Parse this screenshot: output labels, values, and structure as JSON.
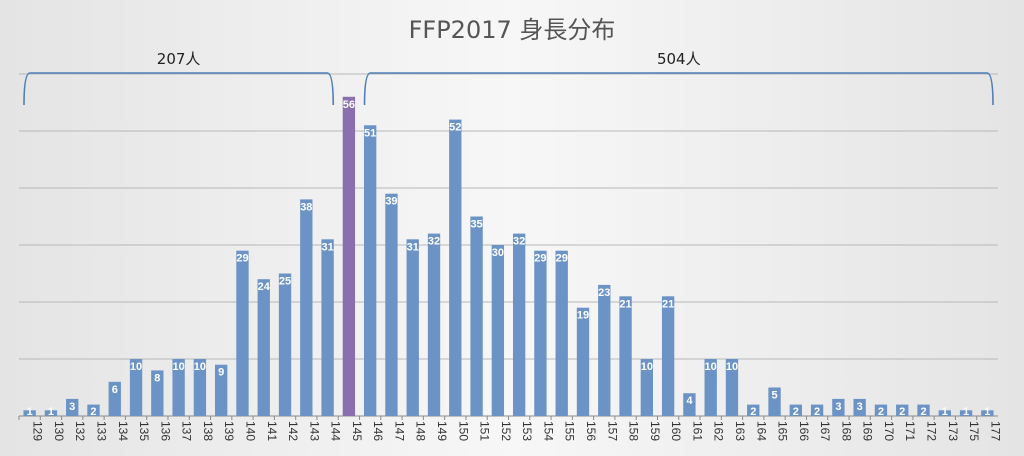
{
  "chart_data": {
    "type": "bar",
    "title": "FFP2017 身長分布",
    "xlabel": "",
    "ylabel": "",
    "ylim": [
      0,
      60
    ],
    "grid": true,
    "categories": [
      "129",
      "130",
      "132",
      "133",
      "134",
      "135",
      "136",
      "137",
      "138",
      "139",
      "140",
      "141",
      "142",
      "143",
      "144",
      "145",
      "146",
      "147",
      "148",
      "149",
      "150",
      "151",
      "152",
      "153",
      "154",
      "155",
      "156",
      "157",
      "158",
      "159",
      "160",
      "161",
      "162",
      "163",
      "164",
      "165",
      "166",
      "167",
      "168",
      "169",
      "170",
      "171",
      "172",
      "173",
      "175",
      "177"
    ],
    "values": [
      1,
      1,
      3,
      2,
      6,
      10,
      8,
      10,
      10,
      9,
      29,
      24,
      25,
      38,
      31,
      56,
      51,
      39,
      31,
      32,
      52,
      35,
      30,
      32,
      29,
      29,
      19,
      23,
      21,
      10,
      21,
      4,
      10,
      10,
      2,
      5,
      2,
      2,
      3,
      3,
      2,
      2,
      2,
      1,
      1,
      1
    ],
    "highlight_category": "145",
    "groups": [
      {
        "label": "207人",
        "from": "129",
        "to": "144"
      },
      {
        "label": "504人",
        "from": "146",
        "to": "177"
      }
    ]
  },
  "colors": {
    "bar": "#6c93c6",
    "highlight": "#8a6fae",
    "grid": "#b8b8b8",
    "axis": "#8a8a8a",
    "bracket": "#4f7fb8"
  }
}
